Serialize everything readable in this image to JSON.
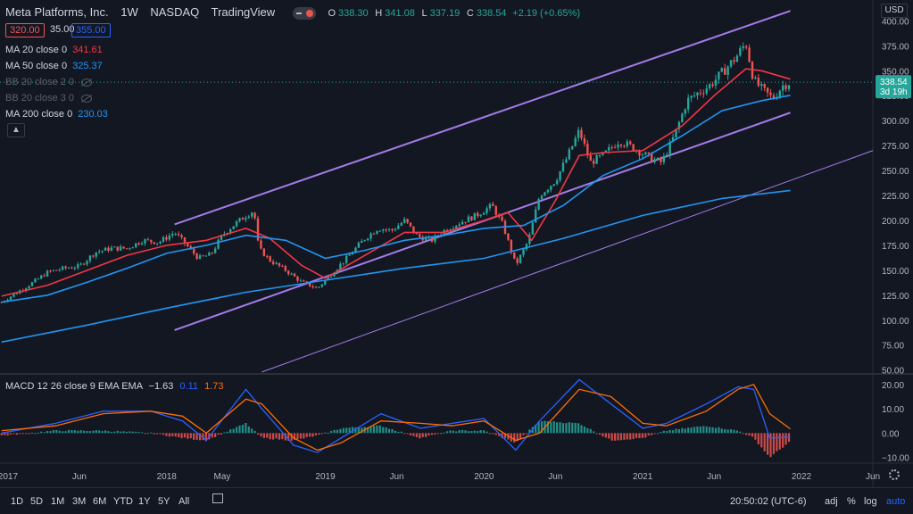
{
  "header": {
    "title": "Meta Platforms, Inc.",
    "interval": "1W",
    "exchange": "NASDAQ",
    "source": "TradingView",
    "ohlc": {
      "o_label": "O",
      "o": "338.30",
      "h_label": "H",
      "h": "341.08",
      "l_label": "L",
      "l": "337.19",
      "c_label": "C",
      "c": "338.54",
      "change": "+2.19 (+0.65%)"
    },
    "price_left": "320.00",
    "spread": "35.00",
    "price_right": "355.00"
  },
  "indicators": [
    {
      "label": "MA 20 close 0",
      "value": "341.61",
      "color": "#f23645"
    },
    {
      "label": "MA 50 close 0",
      "value": "325.37",
      "color": "#2196f3"
    },
    {
      "label": "BB 20 close 2 0",
      "value": "",
      "color": "#5d606b"
    },
    {
      "label": "BB 20 close 3 0",
      "value": "",
      "color": "#5d606b"
    },
    {
      "label": "MA 200 close 0",
      "value": "230.03",
      "color": "#2196f3"
    }
  ],
  "macd_label": {
    "label": "MACD 12 26 close 9 EMA EMA",
    "v1": "−1.63",
    "v2": "0.11",
    "v3": "1.73"
  },
  "currency": "USD",
  "last_price": {
    "value": "338.54",
    "countdown": "3d 19h"
  },
  "time_axis": [
    "2017",
    "Jun",
    "2018",
    "May",
    "2019",
    "Jun",
    "2020",
    "Jun",
    "2021",
    "Jun",
    "2022",
    "Jun"
  ],
  "bottom": {
    "ranges": [
      "1D",
      "5D",
      "1M",
      "3M",
      "6M",
      "YTD",
      "1Y",
      "5Y",
      "All"
    ],
    "clock": "20:50:02 (UTC-6)",
    "adj": "adj",
    "pct": "%",
    "log": "log",
    "auto": "auto"
  },
  "colors": {
    "up": "#26a69a",
    "down": "#ef5350",
    "ma20": "#f23645",
    "ma50": "#2196f3",
    "ma200": "#2196f3",
    "channel": "#b388ff",
    "macd": "#2962ff",
    "signal": "#ff6d00"
  },
  "chart_data": {
    "type": "line",
    "title": "Meta Platforms, Inc. · 1W · NASDAQ",
    "ylim": [
      47,
      412
    ],
    "xlim": [
      2016.95,
      2022.45
    ],
    "y_ticks": [
      50,
      75,
      100,
      125,
      150,
      175,
      200,
      225,
      250,
      275,
      300,
      325,
      350,
      375,
      400
    ],
    "price_series": [
      [
        2016.96,
        118
      ],
      [
        2017.05,
        127
      ],
      [
        2017.15,
        137
      ],
      [
        2017.25,
        148
      ],
      [
        2017.35,
        152
      ],
      [
        2017.45,
        154
      ],
      [
        2017.55,
        168
      ],
      [
        2017.65,
        172
      ],
      [
        2017.75,
        172
      ],
      [
        2017.85,
        180
      ],
      [
        2017.95,
        178
      ],
      [
        2018.05,
        188
      ],
      [
        2018.12,
        176
      ],
      [
        2018.2,
        162
      ],
      [
        2018.28,
        166
      ],
      [
        2018.35,
        185
      ],
      [
        2018.42,
        195
      ],
      [
        2018.5,
        205
      ],
      [
        2018.55,
        210
      ],
      [
        2018.58,
        172
      ],
      [
        2018.65,
        160
      ],
      [
        2018.75,
        150
      ],
      [
        2018.85,
        138
      ],
      [
        2018.95,
        132
      ],
      [
        2019.05,
        148
      ],
      [
        2019.15,
        165
      ],
      [
        2019.25,
        182
      ],
      [
        2019.33,
        192
      ],
      [
        2019.42,
        190
      ],
      [
        2019.5,
        200
      ],
      [
        2019.58,
        184
      ],
      [
        2019.67,
        180
      ],
      [
        2019.75,
        190
      ],
      [
        2019.85,
        198
      ],
      [
        2019.95,
        205
      ],
      [
        2020.05,
        215
      ],
      [
        2020.12,
        195
      ],
      [
        2020.2,
        155
      ],
      [
        2020.28,
        180
      ],
      [
        2020.35,
        225
      ],
      [
        2020.45,
        240
      ],
      [
        2020.52,
        262
      ],
      [
        2020.6,
        290
      ],
      [
        2020.67,
        258
      ],
      [
        2020.75,
        265
      ],
      [
        2020.85,
        280
      ],
      [
        2020.95,
        272
      ],
      [
        2021.05,
        262
      ],
      [
        2021.12,
        258
      ],
      [
        2021.2,
        285
      ],
      [
        2021.28,
        320
      ],
      [
        2021.35,
        328
      ],
      [
        2021.42,
        335
      ],
      [
        2021.5,
        348
      ],
      [
        2021.58,
        362
      ],
      [
        2021.65,
        378
      ],
      [
        2021.7,
        340
      ],
      [
        2021.76,
        330
      ],
      [
        2021.82,
        322
      ],
      [
        2021.88,
        335
      ],
      [
        2021.93,
        338.54
      ]
    ],
    "series": [
      {
        "name": "MA 20 close 0",
        "values": [
          [
            2016.96,
            124
          ],
          [
            2017.25,
            135
          ],
          [
            2017.5,
            150
          ],
          [
            2017.75,
            165
          ],
          [
            2018.0,
            175
          ],
          [
            2018.25,
            180
          ],
          [
            2018.5,
            192
          ],
          [
            2018.65,
            182
          ],
          [
            2018.85,
            155
          ],
          [
            2019.0,
            142
          ],
          [
            2019.25,
            165
          ],
          [
            2019.5,
            188
          ],
          [
            2019.75,
            188
          ],
          [
            2020.0,
            200
          ],
          [
            2020.15,
            208
          ],
          [
            2020.3,
            180
          ],
          [
            2020.45,
            220
          ],
          [
            2020.6,
            265
          ],
          [
            2020.75,
            268
          ],
          [
            2021.0,
            270
          ],
          [
            2021.25,
            295
          ],
          [
            2021.45,
            325
          ],
          [
            2021.65,
            352
          ],
          [
            2021.75,
            350
          ],
          [
            2021.93,
            341.61
          ]
        ]
      },
      {
        "name": "MA 50 close 0",
        "values": [
          [
            2016.96,
            118
          ],
          [
            2017.25,
            125
          ],
          [
            2017.5,
            138
          ],
          [
            2017.75,
            152
          ],
          [
            2018.0,
            167
          ],
          [
            2018.25,
            175
          ],
          [
            2018.5,
            185
          ],
          [
            2018.75,
            180
          ],
          [
            2019.0,
            162
          ],
          [
            2019.25,
            170
          ],
          [
            2019.5,
            180
          ],
          [
            2019.75,
            185
          ],
          [
            2020.0,
            192
          ],
          [
            2020.25,
            195
          ],
          [
            2020.5,
            215
          ],
          [
            2020.75,
            245
          ],
          [
            2021.0,
            262
          ],
          [
            2021.25,
            285
          ],
          [
            2021.5,
            310
          ],
          [
            2021.75,
            320
          ],
          [
            2021.93,
            325.37
          ]
        ]
      },
      {
        "name": "MA 200 close 0",
        "values": [
          [
            2016.96,
            78
          ],
          [
            2017.5,
            95
          ],
          [
            2018.0,
            112
          ],
          [
            2018.5,
            128
          ],
          [
            2019.0,
            140
          ],
          [
            2019.5,
            152
          ],
          [
            2020.0,
            162
          ],
          [
            2020.5,
            182
          ],
          [
            2021.0,
            205
          ],
          [
            2021.5,
            222
          ],
          [
            2021.93,
            230.03
          ]
        ]
      },
      {
        "name": "channel",
        "values": [
          [
            2018.05,
            196
          ],
          [
            2021.93,
            410
          ]
        ]
      },
      {
        "name": "channel",
        "values": [
          [
            2018.05,
            90
          ],
          [
            2021.93,
            308
          ]
        ]
      },
      {
        "name": "channel",
        "values": [
          [
            2018.6,
            48
          ],
          [
            2022.45,
            270
          ]
        ]
      }
    ],
    "macd": {
      "ylim": [
        -12,
        24
      ],
      "y_ticks": [
        -10,
        0,
        10,
        20
      ],
      "macd": [
        [
          2016.96,
          0
        ],
        [
          2017.3,
          4
        ],
        [
          2017.6,
          9
        ],
        [
          2017.9,
          9
        ],
        [
          2018.1,
          5
        ],
        [
          2018.25,
          -3
        ],
        [
          2018.5,
          18
        ],
        [
          2018.6,
          10
        ],
        [
          2018.8,
          -5
        ],
        [
          2018.95,
          -8
        ],
        [
          2019.1,
          -2
        ],
        [
          2019.35,
          8
        ],
        [
          2019.6,
          2
        ],
        [
          2019.8,
          4
        ],
        [
          2020.0,
          6
        ],
        [
          2020.2,
          -7
        ],
        [
          2020.35,
          5
        ],
        [
          2020.6,
          22
        ],
        [
          2020.8,
          12
        ],
        [
          2021.0,
          2
        ],
        [
          2021.15,
          4
        ],
        [
          2021.4,
          12
        ],
        [
          2021.6,
          19
        ],
        [
          2021.7,
          18
        ],
        [
          2021.8,
          -2
        ],
        [
          2021.93,
          -1.63
        ]
      ],
      "signal": [
        [
          2016.96,
          1
        ],
        [
          2017.3,
          3
        ],
        [
          2017.6,
          8
        ],
        [
          2017.9,
          9
        ],
        [
          2018.1,
          7
        ],
        [
          2018.25,
          0
        ],
        [
          2018.5,
          14
        ],
        [
          2018.6,
          12
        ],
        [
          2018.8,
          -2
        ],
        [
          2018.95,
          -7
        ],
        [
          2019.1,
          -4
        ],
        [
          2019.35,
          5
        ],
        [
          2019.6,
          4
        ],
        [
          2019.8,
          3
        ],
        [
          2020.0,
          5
        ],
        [
          2020.2,
          -3
        ],
        [
          2020.35,
          0
        ],
        [
          2020.6,
          18
        ],
        [
          2020.8,
          15
        ],
        [
          2021.0,
          4
        ],
        [
          2021.15,
          3
        ],
        [
          2021.4,
          9
        ],
        [
          2021.6,
          18
        ],
        [
          2021.7,
          20
        ],
        [
          2021.8,
          8
        ],
        [
          2021.93,
          1.73
        ]
      ],
      "histogram": [
        [
          2016.96,
          -1
        ],
        [
          2017.3,
          1
        ],
        [
          2017.6,
          1
        ],
        [
          2017.9,
          0
        ],
        [
          2018.1,
          -2
        ],
        [
          2018.25,
          -3
        ],
        [
          2018.5,
          4
        ],
        [
          2018.6,
          -2
        ],
        [
          2018.8,
          -3
        ],
        [
          2018.95,
          -1
        ],
        [
          2019.1,
          2
        ],
        [
          2019.35,
          3
        ],
        [
          2019.6,
          -2
        ],
        [
          2019.8,
          1
        ],
        [
          2020.0,
          1
        ],
        [
          2020.2,
          -4
        ],
        [
          2020.35,
          5
        ],
        [
          2020.6,
          4
        ],
        [
          2020.8,
          -3
        ],
        [
          2021.0,
          -2
        ],
        [
          2021.15,
          1
        ],
        [
          2021.4,
          3
        ],
        [
          2021.6,
          1
        ],
        [
          2021.7,
          -2
        ],
        [
          2021.8,
          -10
        ],
        [
          2021.93,
          -3.36
        ]
      ]
    }
  }
}
